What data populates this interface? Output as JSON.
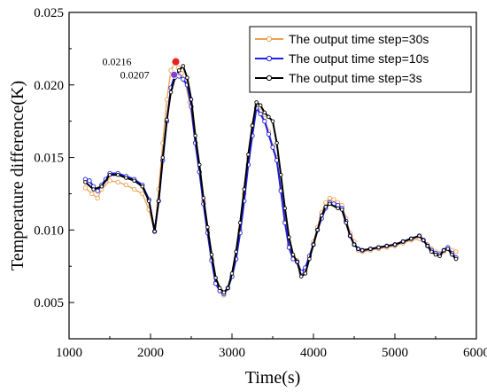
{
  "chart_data": {
    "type": "line",
    "xlabel": "Time(s)",
    "ylabel": "Temperature difference(K)",
    "xlim": [
      1000,
      6000
    ],
    "ylim": [
      0.0025,
      0.025
    ],
    "x_ticks": [
      "1000",
      "2000",
      "3000",
      "4000",
      "5000",
      "6000"
    ],
    "y_ticks": [
      "0.005",
      "0.010",
      "0.015",
      "0.020",
      "0.025"
    ],
    "grid": false,
    "legend_position": "top-right",
    "annotations": [
      {
        "text": "0.0216",
        "x": 2310,
        "y": 0.0216,
        "color": "#e8231f"
      },
      {
        "text": "0.0207",
        "x": 2290,
        "y": 0.0207,
        "color": "#8040d0"
      }
    ],
    "series": [
      {
        "name": "The output time step=30s",
        "color": "#f0a050",
        "marker": "open-circle",
        "x": [
          1200,
          1280,
          1350,
          1400,
          1500,
          1600,
          1700,
          1800,
          1900,
          1980,
          2050,
          2100,
          2150,
          2200,
          2250,
          2300,
          2340,
          2380,
          2420,
          2480,
          2550,
          2600,
          2650,
          2700,
          2750,
          2800,
          2850,
          2900,
          2950,
          3000,
          3050,
          3100,
          3150,
          3200,
          3250,
          3300,
          3350,
          3400,
          3450,
          3500,
          3550,
          3600,
          3650,
          3700,
          3750,
          3800,
          3850,
          3900,
          3950,
          4000,
          4050,
          4100,
          4150,
          4200,
          4250,
          4300,
          4350,
          4400,
          4450,
          4500,
          4550,
          4600,
          4700,
          4800,
          4900,
          5000,
          5100,
          5200,
          5300,
          5350,
          5400,
          5450,
          5500,
          5550,
          5600,
          5650,
          5700,
          5750
        ],
        "y": [
          0.0129,
          0.0125,
          0.0122,
          0.0128,
          0.0134,
          0.0133,
          0.0131,
          0.0128,
          0.0125,
          0.0114,
          0.0099,
          0.0128,
          0.016,
          0.019,
          0.021,
          0.0216,
          0.0212,
          0.0208,
          0.0203,
          0.0188,
          0.016,
          0.014,
          0.012,
          0.01,
          0.008,
          0.0064,
          0.0058,
          0.0055,
          0.006,
          0.0068,
          0.008,
          0.01,
          0.0125,
          0.015,
          0.0172,
          0.0186,
          0.0182,
          0.0177,
          0.0168,
          0.0158,
          0.015,
          0.0128,
          0.0106,
          0.009,
          0.0082,
          0.0079,
          0.007,
          0.0072,
          0.0082,
          0.0092,
          0.0102,
          0.0112,
          0.0119,
          0.0122,
          0.0121,
          0.0119,
          0.0117,
          0.0108,
          0.0098,
          0.0092,
          0.0086,
          0.0085,
          0.0086,
          0.0087,
          0.0088,
          0.0089,
          0.0091,
          0.0093,
          0.0094,
          0.0093,
          0.009,
          0.0087,
          0.0085,
          0.0084,
          0.0085,
          0.0087,
          0.0086,
          0.0085
        ]
      },
      {
        "name": "The output time step=10s",
        "color": "#1f1fe8",
        "marker": "open-circle",
        "x": [
          1200,
          1250,
          1300,
          1350,
          1400,
          1450,
          1500,
          1600,
          1700,
          1800,
          1900,
          1980,
          2050,
          2100,
          2150,
          2200,
          2250,
          2300,
          2350,
          2400,
          2450,
          2500,
          2550,
          2600,
          2650,
          2700,
          2750,
          2800,
          2850,
          2900,
          2950,
          3000,
          3050,
          3100,
          3150,
          3200,
          3250,
          3300,
          3350,
          3400,
          3450,
          3500,
          3550,
          3600,
          3650,
          3700,
          3750,
          3800,
          3850,
          3900,
          3950,
          4000,
          4050,
          4100,
          4150,
          4200,
          4250,
          4300,
          4350,
          4400,
          4450,
          4500,
          4550,
          4600,
          4700,
          4800,
          4900,
          5000,
          5100,
          5200,
          5300,
          5350,
          5400,
          5450,
          5500,
          5550,
          5600,
          5650,
          5700,
          5750
        ],
        "y": [
          0.0135,
          0.0134,
          0.013,
          0.0127,
          0.0131,
          0.0135,
          0.0139,
          0.0139,
          0.0137,
          0.0135,
          0.0131,
          0.0121,
          0.0099,
          0.012,
          0.0148,
          0.0175,
          0.0198,
          0.0207,
          0.0206,
          0.0204,
          0.02,
          0.0185,
          0.016,
          0.014,
          0.0118,
          0.0098,
          0.0079,
          0.0063,
          0.0058,
          0.0056,
          0.006,
          0.0068,
          0.008,
          0.0098,
          0.012,
          0.0145,
          0.0165,
          0.0184,
          0.018,
          0.0175,
          0.0166,
          0.0157,
          0.0148,
          0.0127,
          0.0105,
          0.0088,
          0.008,
          0.0078,
          0.0071,
          0.0074,
          0.0082,
          0.009,
          0.01,
          0.0108,
          0.0115,
          0.0119,
          0.0118,
          0.0117,
          0.0115,
          0.0106,
          0.0096,
          0.009,
          0.0087,
          0.0086,
          0.0087,
          0.0088,
          0.0089,
          0.009,
          0.0092,
          0.0094,
          0.0096,
          0.0093,
          0.0089,
          0.0086,
          0.0084,
          0.0083,
          0.0086,
          0.0088,
          0.0084,
          0.0081
        ]
      },
      {
        "name": "The output time step=3s",
        "color": "#000000",
        "marker": "open-circle",
        "x": [
          1200,
          1300,
          1400,
          1500,
          1600,
          1700,
          1800,
          1900,
          1980,
          2050,
          2100,
          2150,
          2200,
          2250,
          2300,
          2350,
          2400,
          2450,
          2500,
          2550,
          2600,
          2650,
          2700,
          2750,
          2800,
          2850,
          2900,
          2950,
          3000,
          3050,
          3100,
          3150,
          3200,
          3250,
          3300,
          3350,
          3400,
          3450,
          3500,
          3550,
          3600,
          3650,
          3700,
          3750,
          3800,
          3850,
          3900,
          3950,
          4000,
          4050,
          4100,
          4150,
          4200,
          4300,
          4350,
          4400,
          4450,
          4500,
          4550,
          4600,
          4700,
          4800,
          4900,
          5000,
          5100,
          5200,
          5300,
          5350,
          5400,
          5450,
          5500,
          5550,
          5600,
          5650,
          5700,
          5750
        ],
        "y": [
          0.0133,
          0.0128,
          0.013,
          0.0138,
          0.0138,
          0.0136,
          0.0134,
          0.013,
          0.012,
          0.0099,
          0.012,
          0.015,
          0.0176,
          0.0195,
          0.0205,
          0.021,
          0.0213,
          0.0205,
          0.019,
          0.0165,
          0.0145,
          0.0122,
          0.0102,
          0.0083,
          0.0067,
          0.006,
          0.0057,
          0.006,
          0.007,
          0.0085,
          0.0105,
          0.0128,
          0.0152,
          0.0172,
          0.0188,
          0.0186,
          0.0181,
          0.0178,
          0.0175,
          0.016,
          0.0138,
          0.0115,
          0.0095,
          0.0083,
          0.0078,
          0.0068,
          0.007,
          0.008,
          0.009,
          0.01,
          0.011,
          0.0116,
          0.0118,
          0.0115,
          0.0114,
          0.0105,
          0.0096,
          0.009,
          0.0087,
          0.0086,
          0.0087,
          0.0088,
          0.0089,
          0.009,
          0.0092,
          0.0094,
          0.0096,
          0.0093,
          0.0089,
          0.0085,
          0.0083,
          0.0082,
          0.0086,
          0.0087,
          0.0083,
          0.008
        ]
      }
    ]
  }
}
